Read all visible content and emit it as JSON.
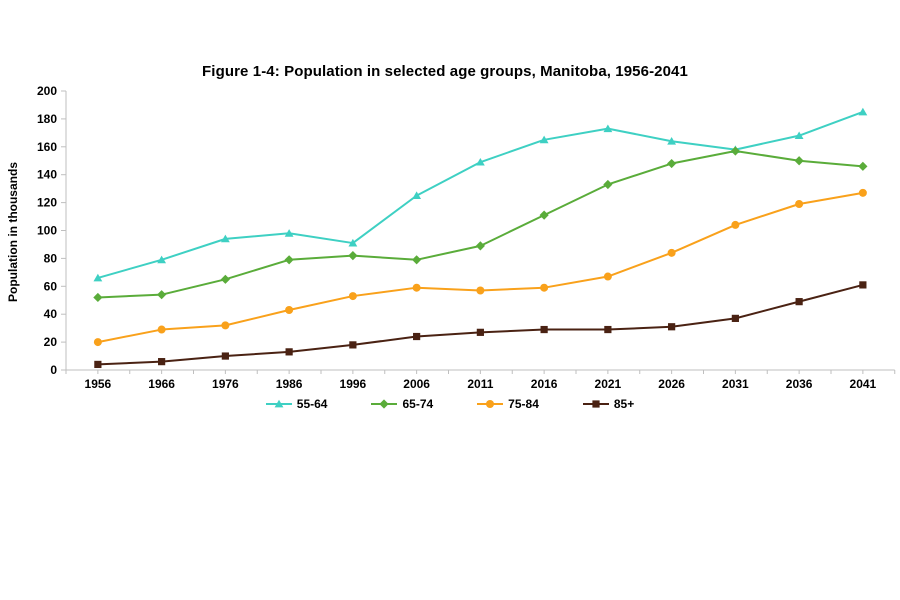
{
  "chart_data": {
    "type": "line",
    "title": "Figure 1-4: Population in selected age groups, Manitoba, 1956-2041",
    "xlabel": "",
    "ylabel": "Population in thousands",
    "categories": [
      "1956",
      "1966",
      "1976",
      "1986",
      "1996",
      "2006",
      "2011",
      "2016",
      "2021",
      "2026",
      "2031",
      "2036",
      "2041"
    ],
    "ylim": [
      0,
      200
    ],
    "ytick_step": 20,
    "grid": false,
    "legend_position": "bottom",
    "axis_color": "#BFBFBF",
    "text_color": "#000000",
    "series": [
      {
        "name": "55-64",
        "color": "#3ED0C3",
        "marker": "triangle",
        "values": [
          66,
          79,
          94,
          98,
          91,
          125,
          149,
          165,
          173,
          164,
          158,
          168,
          185
        ]
      },
      {
        "name": "65-74",
        "color": "#5AAC3A",
        "marker": "diamond",
        "values": [
          52,
          54,
          65,
          79,
          82,
          79,
          89,
          111,
          133,
          148,
          157,
          150,
          146
        ]
      },
      {
        "name": "75-84",
        "color": "#F9A11B",
        "marker": "circle",
        "values": [
          20,
          29,
          32,
          43,
          53,
          59,
          57,
          59,
          67,
          84,
          104,
          119,
          127
        ]
      },
      {
        "name": "85+",
        "color": "#4A2213",
        "marker": "square",
        "values": [
          4,
          6,
          10,
          13,
          18,
          24,
          27,
          29,
          29,
          31,
          37,
          49,
          61
        ]
      }
    ]
  }
}
